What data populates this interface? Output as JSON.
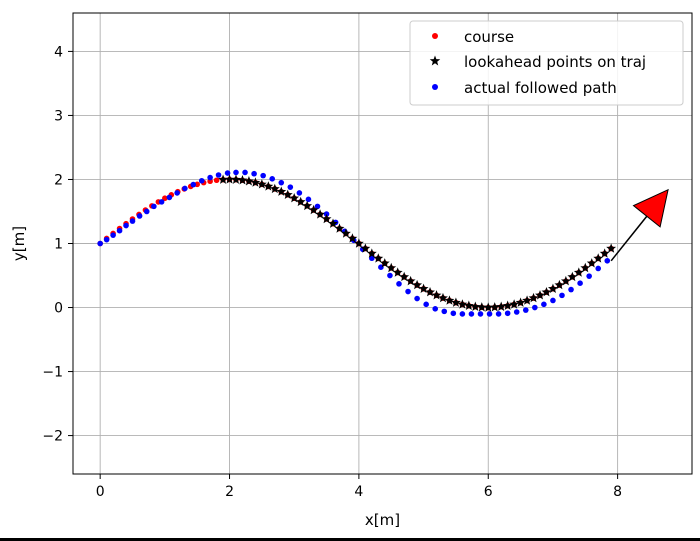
{
  "chart_data": {
    "type": "scatter",
    "xlabel": "x[m]",
    "ylabel": "y[m]",
    "xlim": [
      -0.42,
      9.15
    ],
    "ylim": [
      -2.6,
      4.6
    ],
    "xticks": [
      0,
      2,
      4,
      6,
      8
    ],
    "yticks": [
      -2,
      -1,
      0,
      1,
      2,
      3,
      4
    ],
    "xtick_labels": [
      "0",
      "2",
      "4",
      "6",
      "8"
    ],
    "ytick_labels": [
      "−2",
      "−1",
      "0",
      "1",
      "2",
      "3",
      "4"
    ],
    "grid": true,
    "legend_position": "upper right",
    "series": [
      {
        "name": "course",
        "marker": "dot",
        "color": "#ff0000",
        "x_start": 0.0,
        "x_end": 7.9,
        "x_step": 0.1,
        "function": "y = sin(x/5*pi/2... ) equivalent: y = sin(x * pi / 4) + 1"
      },
      {
        "name": "lookahead points on traj",
        "marker": "star",
        "color": "#000000",
        "x_start": 1.9,
        "x_end": 7.9,
        "x_step": 0.1,
        "function": "y = sin(x * pi / 4) + 1"
      },
      {
        "name": "actual followed path",
        "marker": "dot",
        "color": "#0000ff",
        "points": [
          [
            0.0,
            1.0
          ],
          [
            0.1,
            1.06
          ],
          [
            0.2,
            1.13
          ],
          [
            0.3,
            1.2
          ],
          [
            0.4,
            1.28
          ],
          [
            0.5,
            1.35
          ],
          [
            0.61,
            1.43
          ],
          [
            0.72,
            1.5
          ],
          [
            0.83,
            1.58
          ],
          [
            0.95,
            1.65
          ],
          [
            1.07,
            1.72
          ],
          [
            1.19,
            1.79
          ],
          [
            1.31,
            1.86
          ],
          [
            1.44,
            1.92
          ],
          [
            1.57,
            1.98
          ],
          [
            1.7,
            2.03
          ],
          [
            1.83,
            2.07
          ],
          [
            1.97,
            2.1
          ],
          [
            2.1,
            2.11
          ],
          [
            2.24,
            2.11
          ],
          [
            2.38,
            2.09
          ],
          [
            2.52,
            2.06
          ],
          [
            2.66,
            2.01
          ],
          [
            2.8,
            1.95
          ],
          [
            2.94,
            1.88
          ],
          [
            3.08,
            1.79
          ],
          [
            3.22,
            1.69
          ],
          [
            3.36,
            1.58
          ],
          [
            3.5,
            1.46
          ],
          [
            3.64,
            1.33
          ],
          [
            3.78,
            1.19
          ],
          [
            3.92,
            1.05
          ],
          [
            4.06,
            0.91
          ],
          [
            4.2,
            0.77
          ],
          [
            4.34,
            0.63
          ],
          [
            4.48,
            0.5
          ],
          [
            4.62,
            0.37
          ],
          [
            4.76,
            0.25
          ],
          [
            4.9,
            0.14
          ],
          [
            5.04,
            0.05
          ],
          [
            5.18,
            -0.02
          ],
          [
            5.32,
            -0.06
          ],
          [
            5.46,
            -0.09
          ],
          [
            5.6,
            -0.1
          ],
          [
            5.74,
            -0.1
          ],
          [
            5.88,
            -0.1
          ],
          [
            6.02,
            -0.1
          ],
          [
            6.16,
            -0.1
          ],
          [
            6.3,
            -0.09
          ],
          [
            6.44,
            -0.07
          ],
          [
            6.58,
            -0.04
          ],
          [
            6.72,
            0.0
          ],
          [
            6.86,
            0.05
          ],
          [
            7.0,
            0.11
          ],
          [
            7.14,
            0.19
          ],
          [
            7.28,
            0.28
          ],
          [
            7.42,
            0.38
          ],
          [
            7.56,
            0.49
          ],
          [
            7.7,
            0.61
          ],
          [
            7.84,
            0.73
          ]
        ]
      }
    ],
    "annotations": [
      {
        "type": "arrow",
        "from": [
          7.9,
          0.73
        ],
        "to": [
          8.78,
          1.84
        ],
        "head_color": "#ff0000",
        "edge_color": "#000000"
      }
    ]
  }
}
